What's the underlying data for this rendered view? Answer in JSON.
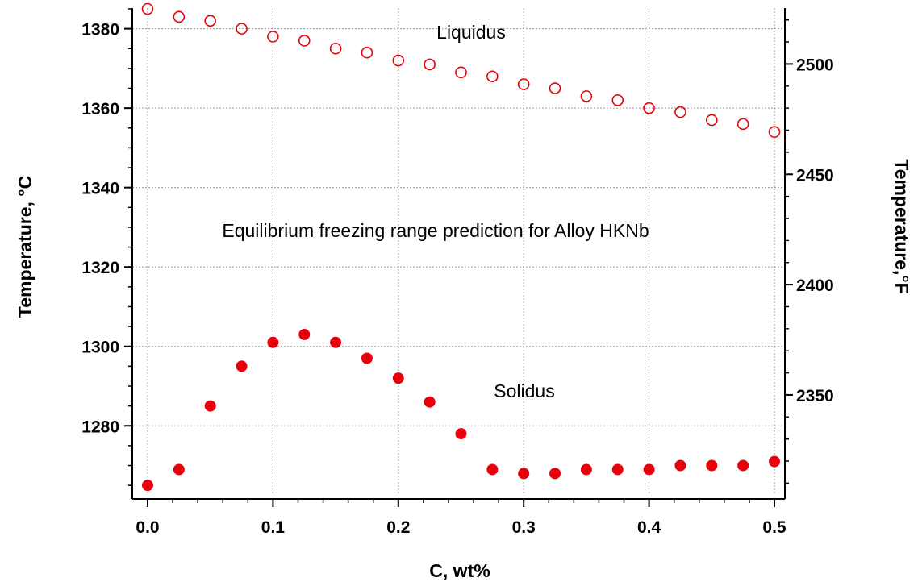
{
  "chart_data": {
    "type": "scatter",
    "annotation": "Equilibrium freezing range prediction for Alloy HKNb",
    "xlabel": "C, wt%",
    "ylabel": "Temperature, °C",
    "y2label": "Temperature,°F",
    "xlim": [
      0.0,
      0.5
    ],
    "ylim": [
      1263,
      1385
    ],
    "y2lim": [
      2305.4,
      2525
    ],
    "x_ticks": [
      "0.0",
      "0.1",
      "0.2",
      "0.3",
      "0.4",
      "0.5"
    ],
    "y_ticks": [
      "1280",
      "1300",
      "1320",
      "1340",
      "1360",
      "1380"
    ],
    "y2_ticks": [
      "2350",
      "2400",
      "2450",
      "2500"
    ],
    "grid": true,
    "x": [
      0.0,
      0.025,
      0.05,
      0.075,
      0.1,
      0.125,
      0.15,
      0.175,
      0.2,
      0.225,
      0.25,
      0.275,
      0.3,
      0.325,
      0.35,
      0.375,
      0.4,
      0.425,
      0.45,
      0.475,
      0.5
    ],
    "series": [
      {
        "label": "Liquidus",
        "marker": "open-circle",
        "color": "#e8000b",
        "values": [
          1385,
          1383,
          1382,
          1380,
          1378,
          1377,
          1375,
          1374,
          1372,
          1371,
          1369,
          1368,
          1366,
          1365,
          1363,
          1362,
          1360,
          1359,
          1357,
          1356,
          1354
        ]
      },
      {
        "label": "Solidus",
        "marker": "filled-circle",
        "color": "#e8000b",
        "values": [
          1265,
          1269,
          1285,
          1295,
          1301,
          1303,
          1301,
          1297,
          1292,
          1286,
          1278,
          1269,
          1268,
          1268,
          1269,
          1269,
          1269,
          1270,
          1270,
          1270,
          1271
        ]
      }
    ]
  }
}
